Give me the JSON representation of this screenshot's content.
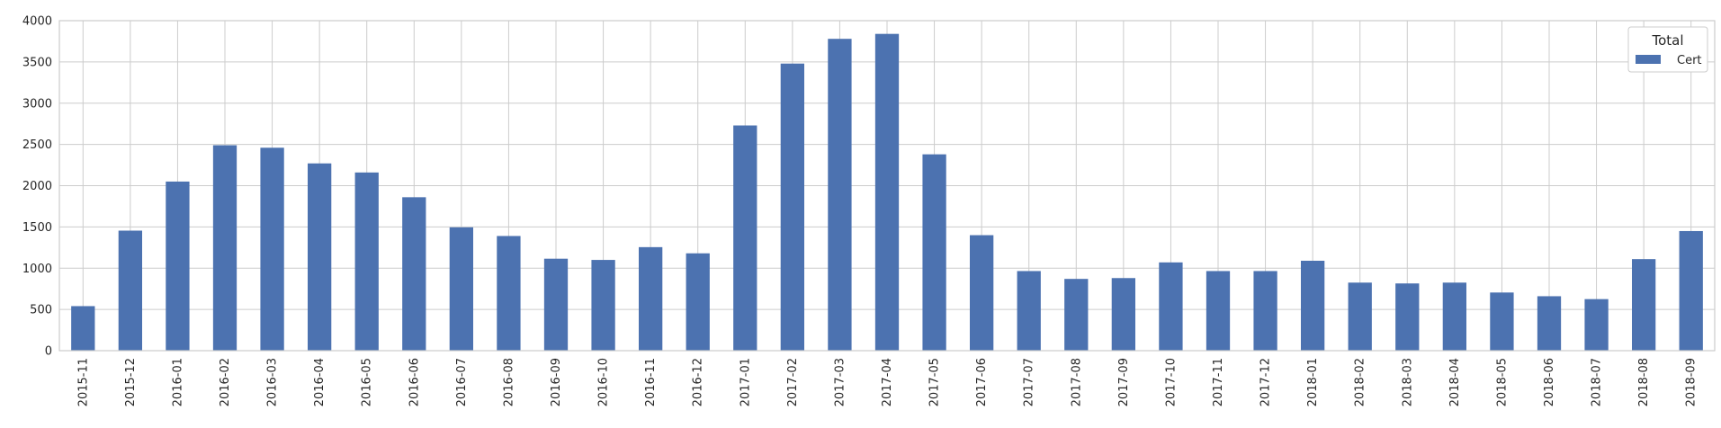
{
  "chart_data": {
    "type": "bar",
    "categories": [
      "2015-11",
      "2015-12",
      "2016-01",
      "2016-02",
      "2016-03",
      "2016-04",
      "2016-05",
      "2016-06",
      "2016-07",
      "2016-08",
      "2016-09",
      "2016-10",
      "2016-11",
      "2016-12",
      "2017-01",
      "2017-02",
      "2017-03",
      "2017-04",
      "2017-05",
      "2017-06",
      "2017-07",
      "2017-08",
      "2017-09",
      "2017-10",
      "2017-11",
      "2017-12",
      "2018-01",
      "2018-02",
      "2018-03",
      "2018-04",
      "2018-05",
      "2018-06",
      "2018-07",
      "2018-08",
      "2018-09"
    ],
    "series": [
      {
        "name": "Cert",
        "color": "#4c72b0",
        "values": [
          540,
          1455,
          2050,
          2490,
          2460,
          2270,
          2160,
          1860,
          1495,
          1390,
          1115,
          1100,
          1255,
          1180,
          2730,
          3480,
          3780,
          3840,
          2380,
          1400,
          965,
          870,
          880,
          1070,
          965,
          965,
          1090,
          825,
          815,
          825,
          705,
          660,
          625,
          1110,
          1450
        ]
      }
    ],
    "title": "",
    "xlabel": "",
    "ylabel": "",
    "ylim": [
      0,
      4000
    ],
    "yticks": [
      0,
      500,
      1000,
      1500,
      2000,
      2500,
      3000,
      3500,
      4000
    ],
    "grid": true,
    "legend": {
      "title": "Total",
      "placement": "top-right"
    }
  }
}
